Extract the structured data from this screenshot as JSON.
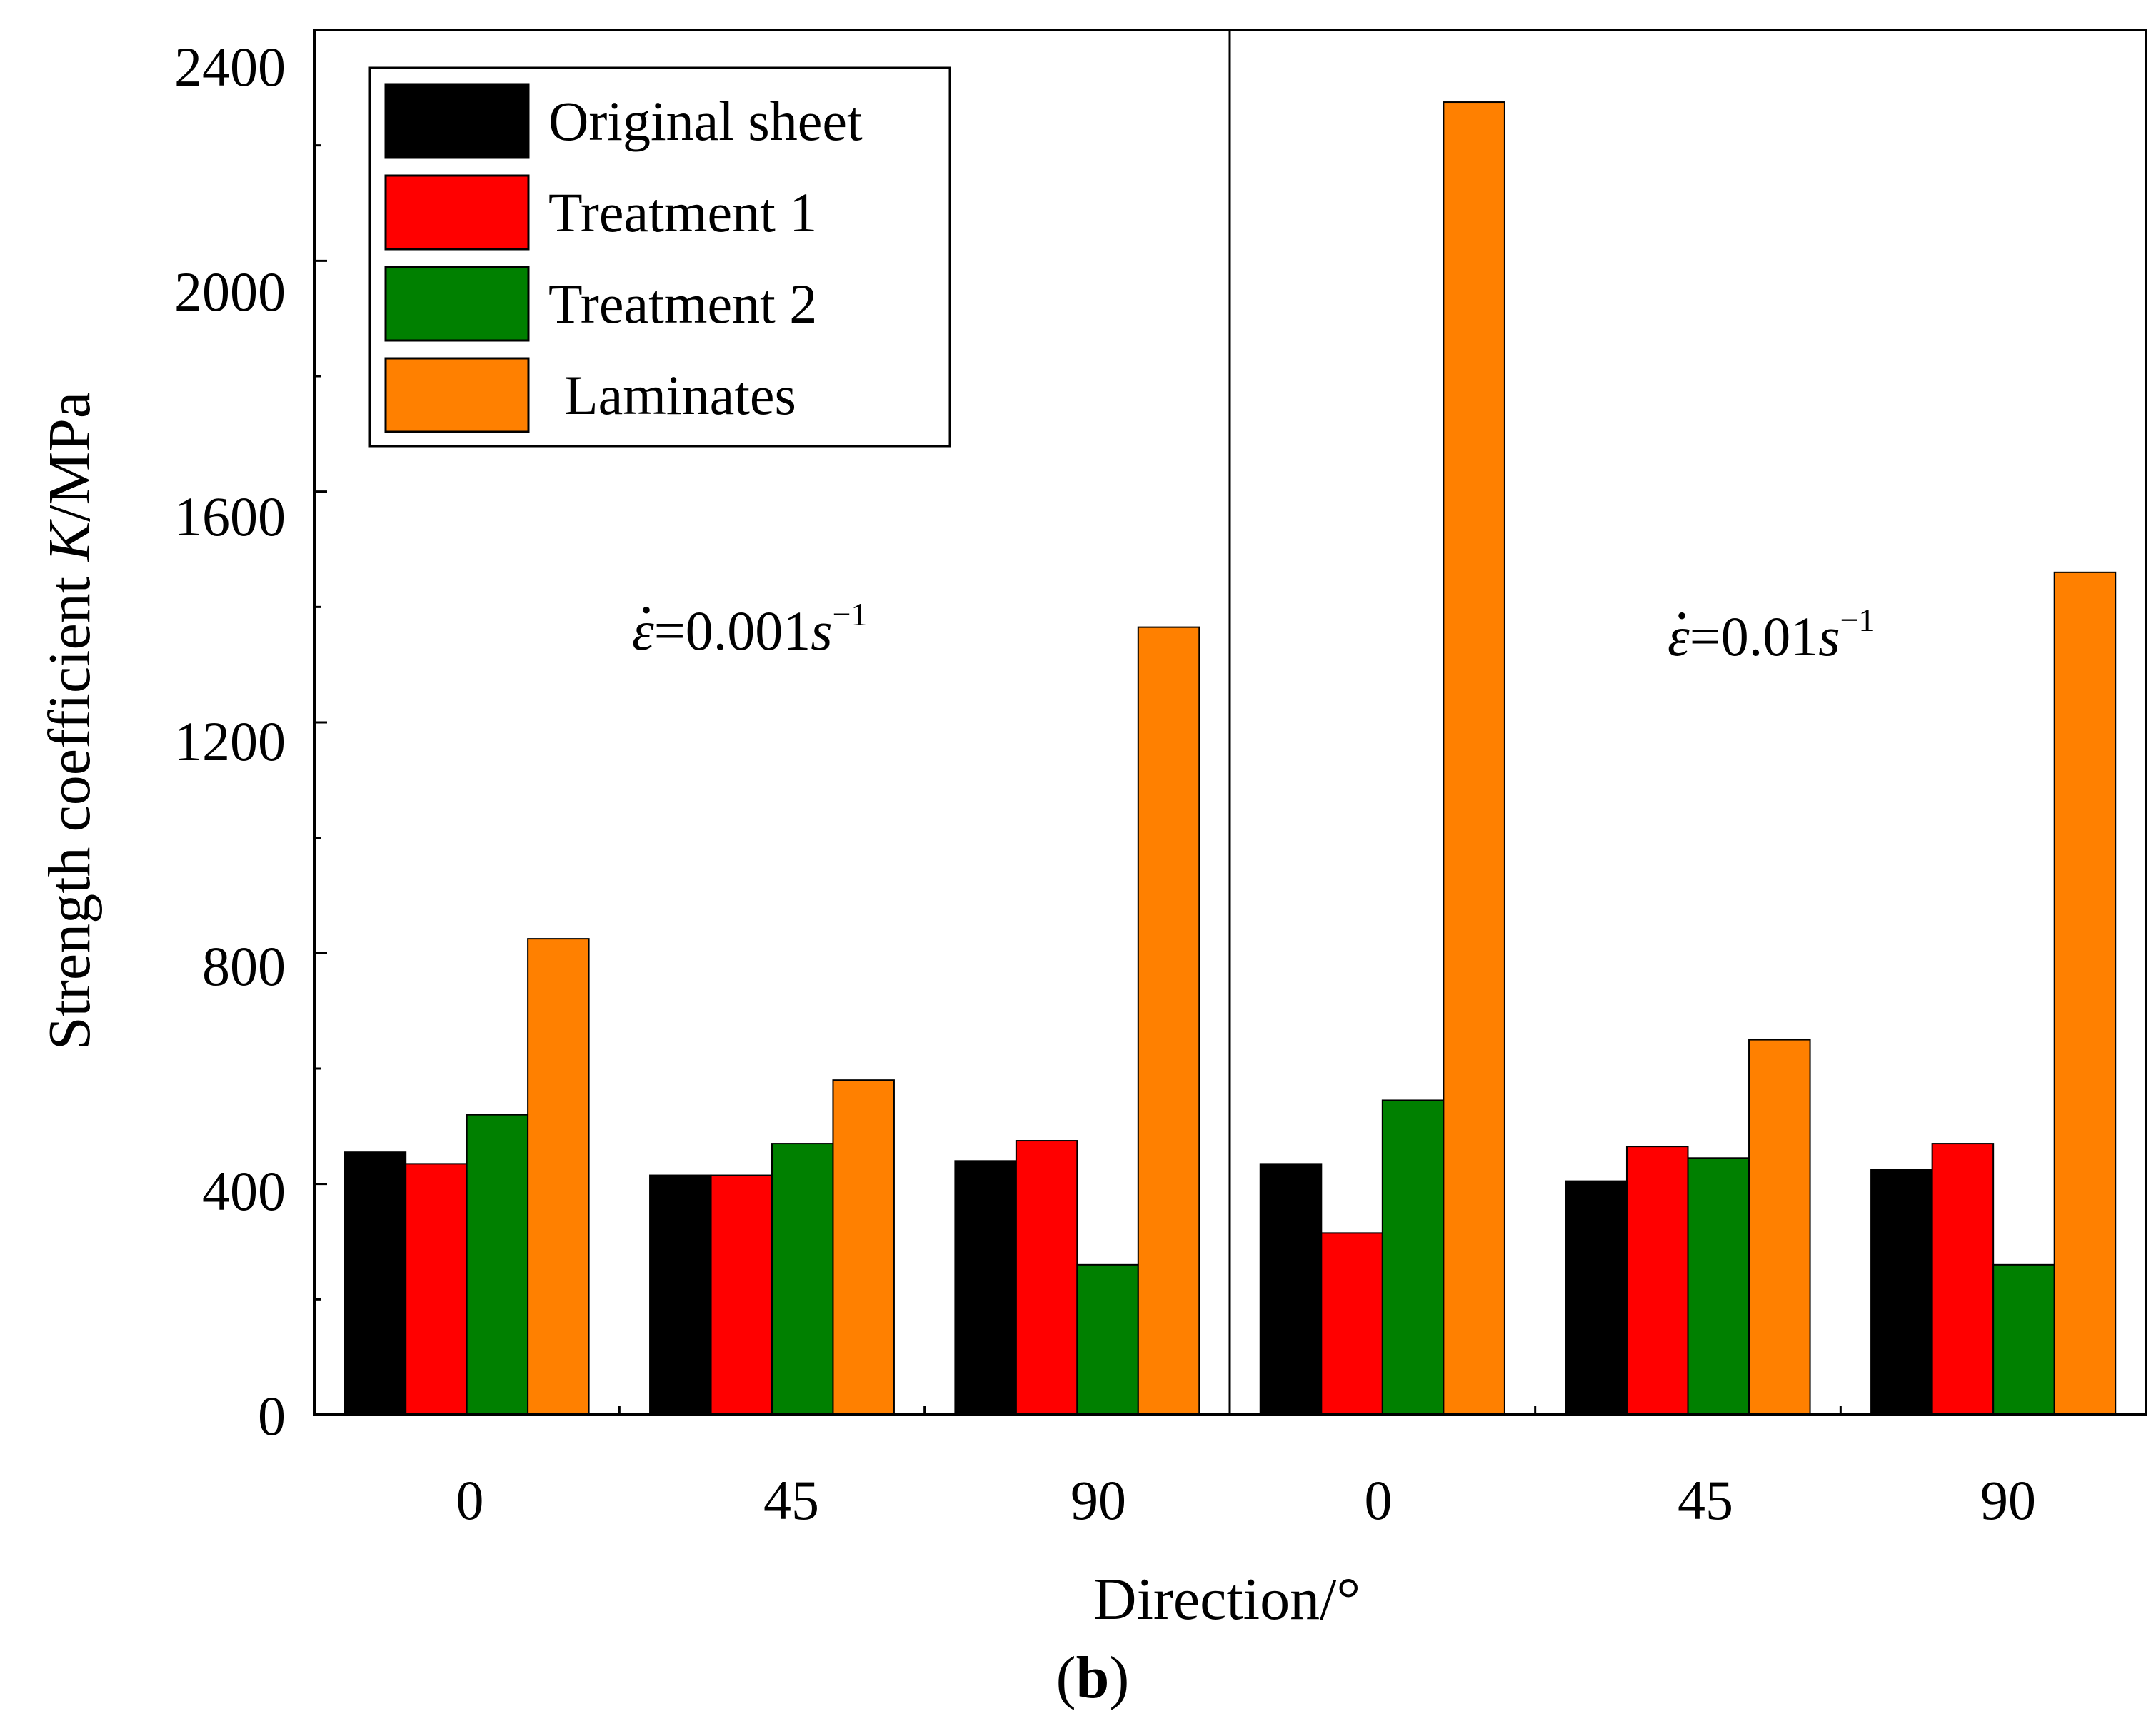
{
  "figure_label": {
    "open": "(",
    "letter": "b",
    "close": ")"
  },
  "colors": {
    "Original sheet": "#000000",
    "Treatment 1": "#ff0000",
    "Treatment 2": "#008000",
    "Laminates": "#ff8000"
  },
  "chart_data": {
    "type": "bar",
    "title": "",
    "xlabel": "Direction/°",
    "ylabel": {
      "prefix": "Strength coefficient ",
      "italic": "K",
      "suffix": "/MPa"
    },
    "ylim": [
      0,
      2400
    ],
    "yticks": [
      "0",
      "400",
      "800",
      "1200",
      "1600",
      "2000",
      "2400"
    ],
    "grid": false,
    "legend_position": "top-left",
    "legend": [
      "Original sheet",
      "Treatment 1",
      "Treatment 2",
      "Laminates"
    ],
    "panels": [
      {
        "annotation": {
          "symbol": "ε",
          "value": "=0.001",
          "unit": "s",
          "exponent": "−1"
        },
        "categories": [
          "0",
          "45",
          "90"
        ],
        "series": [
          {
            "name": "Original sheet",
            "values": [
              455,
              415,
              440
            ]
          },
          {
            "name": "Treatment 1",
            "values": [
              435,
              415,
              475
            ]
          },
          {
            "name": "Treatment 2",
            "values": [
              520,
              470,
              260
            ]
          },
          {
            "name": "Laminates",
            "values": [
              825,
              580,
              1365
            ]
          }
        ]
      },
      {
        "annotation": {
          "symbol": "ε",
          "value": "=0.01",
          "unit": "s",
          "exponent": "−1"
        },
        "categories": [
          "0",
          "45",
          "90"
        ],
        "series": [
          {
            "name": "Original sheet",
            "values": [
              435,
              405,
              425
            ]
          },
          {
            "name": "Treatment 1",
            "values": [
              315,
              465,
              470
            ]
          },
          {
            "name": "Treatment 2",
            "values": [
              545,
              445,
              260
            ]
          },
          {
            "name": "Laminates",
            "values": [
              2275,
              650,
              1460
            ]
          }
        ]
      }
    ]
  }
}
